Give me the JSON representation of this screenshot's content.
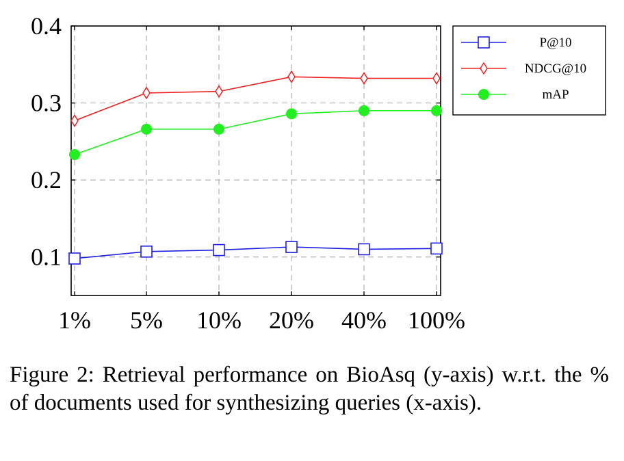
{
  "chart_data": {
    "type": "line",
    "categories": [
      "1%",
      "5%",
      "10%",
      "20%",
      "40%",
      "100%"
    ],
    "y_ticks": [
      "0.1",
      "0.2",
      "0.3",
      "0.4"
    ],
    "ylim": [
      0.05,
      0.4
    ],
    "grid": true,
    "legend_position": "top-right, outside plot",
    "series": [
      {
        "name": "P@10",
        "color": "#1f1fdf",
        "marker": "square",
        "values": [
          0.098,
          0.107,
          0.109,
          0.113,
          0.11,
          0.111
        ]
      },
      {
        "name": "NDCG@10",
        "color": "#ee2222",
        "marker": "diamond",
        "values": [
          0.277,
          0.313,
          0.315,
          0.334,
          0.332,
          0.332
        ]
      },
      {
        "name": "mAP",
        "color": "#22ee22",
        "marker": "circle",
        "values": [
          0.233,
          0.266,
          0.266,
          0.286,
          0.29,
          0.29
        ]
      }
    ]
  },
  "caption": {
    "text": "Figure 2: Retrieval performance on BioAsq (y-axis) w.r.t. the % of documents used for synthesizing queries (x-axis)."
  }
}
